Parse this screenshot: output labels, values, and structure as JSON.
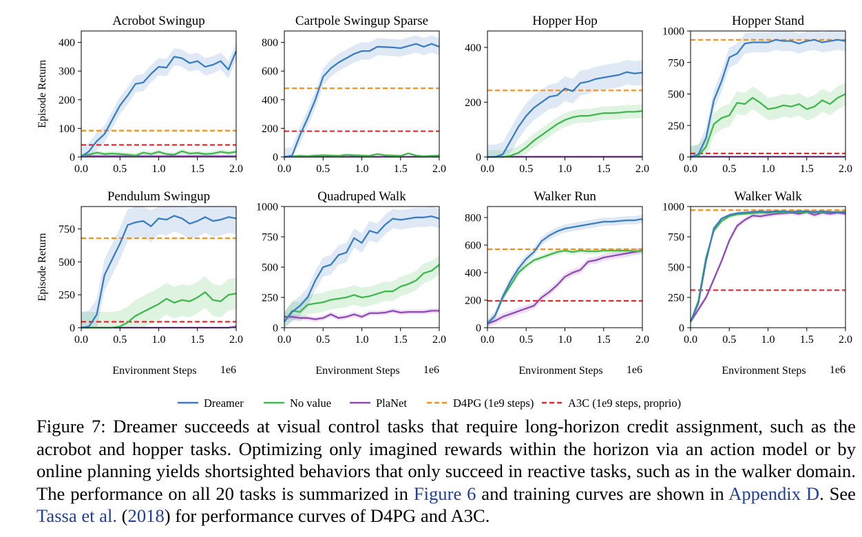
{
  "chart_data": [
    {
      "type": "line",
      "title": "Acrobot Swingup",
      "xlabel": "",
      "ylabel": "Episode Return",
      "xlim": [
        0,
        2.0
      ],
      "ylim": [
        0,
        440
      ],
      "xticks": [
        "0.0",
        "0.5",
        "1.0",
        "1.5",
        "2.0"
      ],
      "yticks": [
        0,
        100,
        200,
        300,
        400
      ],
      "x_multiplier": "",
      "x": [
        0,
        0.1,
        0.2,
        0.3,
        0.4,
        0.5,
        0.6,
        0.7,
        0.8,
        0.9,
        1.0,
        1.1,
        1.2,
        1.3,
        1.4,
        1.5,
        1.6,
        1.7,
        1.8,
        1.9,
        2.0
      ],
      "series": [
        {
          "name": "Dreamer",
          "values": [
            0,
            20,
            55,
            80,
            130,
            180,
            215,
            255,
            260,
            290,
            315,
            312,
            350,
            345,
            328,
            335,
            315,
            322,
            335,
            305,
            370
          ],
          "band": 30
        },
        {
          "name": "No value",
          "values": [
            5,
            8,
            15,
            10,
            12,
            10,
            8,
            5,
            15,
            10,
            18,
            10,
            8,
            20,
            12,
            14,
            10,
            12,
            18,
            14,
            18
          ],
          "band": 8
        },
        {
          "name": "PlaNet",
          "values": [
            3,
            3,
            3,
            3,
            3,
            3,
            3,
            3,
            3,
            3,
            3,
            3,
            3,
            3,
            3,
            3,
            3,
            3,
            3,
            3,
            3
          ],
          "band": 2
        }
      ],
      "d4pg": 92,
      "a3c": 42
    },
    {
      "type": "line",
      "title": "Cartpole Swingup Sparse",
      "xlabel": "",
      "ylabel": "",
      "xlim": [
        0,
        2.0
      ],
      "ylim": [
        0,
        880
      ],
      "xticks": [
        "0.0",
        "0.5",
        "1.0",
        "1.5",
        "2.0"
      ],
      "yticks": [
        0,
        200,
        400,
        600,
        800
      ],
      "x_multiplier": "",
      "x": [
        0,
        0.1,
        0.2,
        0.3,
        0.4,
        0.5,
        0.6,
        0.7,
        0.8,
        0.9,
        1.0,
        1.1,
        1.2,
        1.3,
        1.4,
        1.5,
        1.6,
        1.7,
        1.8,
        1.9,
        2.0
      ],
      "series": [
        {
          "name": "Dreamer",
          "values": [
            0,
            10,
            150,
            270,
            400,
            560,
            620,
            660,
            690,
            720,
            740,
            740,
            770,
            768,
            765,
            760,
            775,
            790,
            770,
            790,
            770
          ],
          "band": 60
        },
        {
          "name": "No value",
          "values": [
            0,
            5,
            8,
            6,
            10,
            12,
            10,
            8,
            15,
            12,
            10,
            8,
            20,
            12,
            10,
            8,
            25,
            10,
            5,
            8,
            10
          ],
          "band": 8
        },
        {
          "name": "PlaNet",
          "values": [
            2,
            2,
            2,
            2,
            2,
            2,
            2,
            2,
            2,
            2,
            2,
            2,
            2,
            2,
            2,
            2,
            2,
            2,
            2,
            2,
            2
          ],
          "band": 2
        }
      ],
      "d4pg": 480,
      "a3c": 180
    },
    {
      "type": "line",
      "title": "Hopper Hop",
      "xlabel": "",
      "ylabel": "",
      "xlim": [
        0,
        2.0
      ],
      "ylim": [
        0,
        460
      ],
      "xticks": [
        "0.0",
        "0.5",
        "1.0",
        "1.5",
        "2.0"
      ],
      "yticks": [
        0,
        200,
        400
      ],
      "x_multiplier": "",
      "x": [
        0,
        0.1,
        0.2,
        0.3,
        0.4,
        0.5,
        0.6,
        0.7,
        0.8,
        0.9,
        1.0,
        1.1,
        1.2,
        1.3,
        1.4,
        1.5,
        1.6,
        1.7,
        1.8,
        1.9,
        2.0
      ],
      "series": [
        {
          "name": "Dreamer",
          "values": [
            0,
            0,
            10,
            60,
            110,
            150,
            180,
            200,
            220,
            225,
            250,
            240,
            270,
            275,
            285,
            290,
            295,
            300,
            310,
            305,
            308
          ],
          "band": 45
        },
        {
          "name": "No value",
          "values": [
            0,
            0,
            0,
            5,
            15,
            35,
            60,
            80,
            100,
            120,
            135,
            145,
            150,
            150,
            155,
            160,
            160,
            162,
            165,
            165,
            168
          ],
          "band": 25
        },
        {
          "name": "PlaNet",
          "values": [
            0,
            1,
            1,
            1,
            1,
            1,
            1,
            1,
            1,
            1,
            1,
            1,
            1,
            1,
            1,
            1,
            1,
            1,
            1,
            1,
            1
          ],
          "band": 2
        }
      ],
      "d4pg": 243,
      "a3c": null
    },
    {
      "type": "line",
      "title": "Hopper Stand",
      "xlabel": "",
      "ylabel": "",
      "xlim": [
        0,
        2.0
      ],
      "ylim": [
        0,
        1000
      ],
      "xticks": [
        "0.0",
        "0.5",
        "1.0",
        "1.5",
        "2.0"
      ],
      "yticks": [
        0,
        250,
        500,
        750,
        1000
      ],
      "x_multiplier": "",
      "x": [
        0,
        0.1,
        0.2,
        0.3,
        0.4,
        0.5,
        0.6,
        0.7,
        0.8,
        0.9,
        1.0,
        1.1,
        1.2,
        1.3,
        1.4,
        1.5,
        1.6,
        1.7,
        1.8,
        1.9,
        2.0
      ],
      "series": [
        {
          "name": "Dreamer",
          "values": [
            0,
            20,
            150,
            450,
            600,
            790,
            820,
            900,
            910,
            910,
            910,
            930,
            920,
            920,
            900,
            920,
            930,
            910,
            920,
            930,
            920
          ],
          "band": 80
        },
        {
          "name": "No value",
          "values": [
            0,
            10,
            80,
            260,
            310,
            330,
            430,
            420,
            470,
            430,
            380,
            390,
            410,
            400,
            420,
            380,
            400,
            450,
            420,
            470,
            500
          ],
          "band": 90
        },
        {
          "name": "PlaNet",
          "values": [
            3,
            3,
            3,
            3,
            3,
            3,
            3,
            3,
            3,
            3,
            3,
            3,
            3,
            3,
            3,
            3,
            3,
            3,
            3,
            3,
            3
          ],
          "band": 3
        }
      ],
      "d4pg": 930,
      "a3c": 28
    },
    {
      "type": "line",
      "title": "Pendulum Swingup",
      "xlabel": "Environment Steps",
      "ylabel": "Episode Return",
      "xlim": [
        0,
        2.0
      ],
      "ylim": [
        0,
        920
      ],
      "xticks": [
        "0.0",
        "0.5",
        "1.0",
        "1.5",
        "2.0"
      ],
      "yticks": [
        0,
        250,
        500,
        750
      ],
      "x_multiplier": "1e6",
      "x": [
        0,
        0.1,
        0.2,
        0.3,
        0.4,
        0.5,
        0.6,
        0.7,
        0.8,
        0.9,
        1.0,
        1.1,
        1.2,
        1.3,
        1.4,
        1.5,
        1.6,
        1.7,
        1.8,
        1.9,
        2.0
      ],
      "series": [
        {
          "name": "Dreamer",
          "values": [
            0,
            10,
            100,
            400,
            520,
            640,
            780,
            800,
            810,
            770,
            830,
            820,
            850,
            830,
            790,
            810,
            840,
            810,
            820,
            840,
            830
          ],
          "band": 120
        },
        {
          "name": "No value",
          "values": [
            0,
            0,
            0,
            0,
            0,
            10,
            40,
            90,
            120,
            150,
            180,
            220,
            190,
            210,
            200,
            230,
            270,
            210,
            200,
            250,
            260
          ],
          "band": 120
        },
        {
          "name": "PlaNet",
          "values": [
            0,
            0,
            0,
            0,
            0,
            0,
            0,
            0,
            0,
            0,
            0,
            0,
            0,
            0,
            0,
            0,
            0,
            0,
            0,
            0,
            10
          ],
          "band": 8
        }
      ],
      "d4pg": 680,
      "a3c": 45
    },
    {
      "type": "line",
      "title": "Quadruped Walk",
      "xlabel": "Environment Steps",
      "ylabel": "",
      "xlim": [
        0,
        2.0
      ],
      "ylim": [
        0,
        1000
      ],
      "xticks": [
        "0.0",
        "0.5",
        "1.0",
        "1.5",
        "2.0"
      ],
      "yticks": [
        0,
        250,
        500,
        750,
        1000
      ],
      "x_multiplier": "1e6",
      "x": [
        0,
        0.1,
        0.2,
        0.3,
        0.4,
        0.5,
        0.6,
        0.7,
        0.8,
        0.9,
        1.0,
        1.1,
        1.2,
        1.3,
        1.4,
        1.5,
        1.6,
        1.7,
        1.8,
        1.9,
        2.0
      ],
      "series": [
        {
          "name": "Dreamer",
          "values": [
            50,
            130,
            180,
            250,
            390,
            500,
            520,
            600,
            620,
            740,
            700,
            800,
            780,
            850,
            900,
            890,
            900,
            910,
            910,
            920,
            900
          ],
          "band": 80
        },
        {
          "name": "No value",
          "values": [
            50,
            140,
            130,
            190,
            200,
            210,
            230,
            240,
            250,
            270,
            250,
            260,
            280,
            300,
            300,
            340,
            360,
            390,
            450,
            470,
            520
          ],
          "band": 80
        },
        {
          "name": "PlaNet",
          "values": [
            90,
            90,
            80,
            80,
            70,
            80,
            110,
            80,
            90,
            110,
            90,
            120,
            120,
            125,
            140,
            125,
            130,
            130,
            130,
            140,
            140
          ],
          "band": 20
        }
      ],
      "d4pg": null,
      "a3c": null
    },
    {
      "type": "line",
      "title": "Walker Run",
      "xlabel": "Environment Steps",
      "ylabel": "",
      "xlim": [
        0,
        2.0
      ],
      "ylim": [
        0,
        880
      ],
      "xticks": [
        "0.0",
        "0.5",
        "1.0",
        "1.5",
        "2.0"
      ],
      "yticks": [
        0,
        200,
        400,
        600,
        800
      ],
      "x_multiplier": "1e6",
      "x": [
        0,
        0.1,
        0.2,
        0.3,
        0.4,
        0.5,
        0.6,
        0.7,
        0.8,
        0.9,
        1.0,
        1.1,
        1.2,
        1.3,
        1.4,
        1.5,
        1.6,
        1.7,
        1.8,
        1.9,
        2.0
      ],
      "series": [
        {
          "name": "Dreamer",
          "values": [
            30,
            90,
            230,
            340,
            430,
            500,
            550,
            630,
            670,
            700,
            720,
            730,
            740,
            750,
            760,
            770,
            770,
            775,
            780,
            780,
            790
          ],
          "band": 30
        },
        {
          "name": "No value",
          "values": [
            30,
            90,
            220,
            310,
            400,
            450,
            490,
            510,
            530,
            550,
            560,
            550,
            560,
            555,
            555,
            560,
            560,
            560,
            560,
            555,
            560
          ],
          "band": 20
        },
        {
          "name": "PlaNet",
          "values": [
            30,
            50,
            80,
            100,
            120,
            140,
            160,
            220,
            260,
            310,
            370,
            400,
            420,
            480,
            490,
            510,
            520,
            530,
            540,
            550,
            560
          ],
          "band": 25
        }
      ],
      "d4pg": 570,
      "a3c": 195
    },
    {
      "type": "line",
      "title": "Walker Walk",
      "xlabel": "Environment Steps",
      "ylabel": "",
      "xlim": [
        0,
        2.0
      ],
      "ylim": [
        0,
        1000
      ],
      "xticks": [
        "0.0",
        "0.5",
        "1.0",
        "1.5",
        "2.0"
      ],
      "yticks": [
        0,
        250,
        500,
        750,
        1000
      ],
      "x_multiplier": "1e6",
      "x": [
        0,
        0.1,
        0.2,
        0.3,
        0.4,
        0.5,
        0.6,
        0.7,
        0.8,
        0.9,
        1.0,
        1.1,
        1.2,
        1.3,
        1.4,
        1.5,
        1.6,
        1.7,
        1.8,
        1.9,
        2.0
      ],
      "series": [
        {
          "name": "Dreamer",
          "values": [
            50,
            200,
            550,
            820,
            900,
            930,
            945,
            950,
            955,
            960,
            955,
            960,
            960,
            955,
            960,
            960,
            955,
            960,
            955,
            950,
            955
          ],
          "band": 15
        },
        {
          "name": "No value",
          "values": [
            50,
            220,
            580,
            800,
            880,
            920,
            935,
            940,
            945,
            950,
            948,
            955,
            950,
            955,
            952,
            955,
            950,
            955,
            950,
            955,
            955
          ],
          "band": 15
        },
        {
          "name": "PlaNet",
          "values": [
            50,
            150,
            250,
            400,
            550,
            720,
            840,
            890,
            925,
            920,
            930,
            940,
            945,
            950,
            940,
            955,
            930,
            950,
            940,
            950,
            940
          ],
          "band": 20
        }
      ],
      "d4pg": 970,
      "a3c": 310
    }
  ],
  "legend": {
    "items": [
      {
        "label": "Dreamer",
        "color": "#3a7dc4",
        "style": "solid"
      },
      {
        "label": "No value",
        "color": "#3fb84d",
        "style": "solid"
      },
      {
        "label": "PlaNet",
        "color": "#9148b8",
        "style": "solid"
      },
      {
        "label": "D4PG (1e9 steps)",
        "color": "#ff8c10",
        "style": "dashed"
      },
      {
        "label": "A3C (1e9 steps, proprio)",
        "color": "#e3262a",
        "style": "dashed"
      }
    ]
  },
  "colors": {
    "dreamer": "#3a7dc4",
    "novalue": "#3fb84d",
    "planet": "#9148b8",
    "d4pg": "#ff8c10",
    "a3c": "#e3262a",
    "link": "#1f3e9e"
  },
  "caption": {
    "part1": "Figure 7: Dreamer succeeds at visual control tasks that require long-horizon credit assignment, such as the acrobot and hopper tasks. Optimizing only imagined rewards within the horizon via an action model or by online planning yields shortsighted behaviors that only succeed in reactive tasks, such as in the walker domain. The performance on all 20 tasks is summarized in ",
    "link1": "Figure 6",
    "part2": " and training curves are shown in ",
    "link2": "Appendix D",
    "part3": ". See ",
    "link3": "Tassa et al.",
    "part4": " (",
    "link4": "2018",
    "part5": ") for performance curves of D4PG and A3C."
  }
}
